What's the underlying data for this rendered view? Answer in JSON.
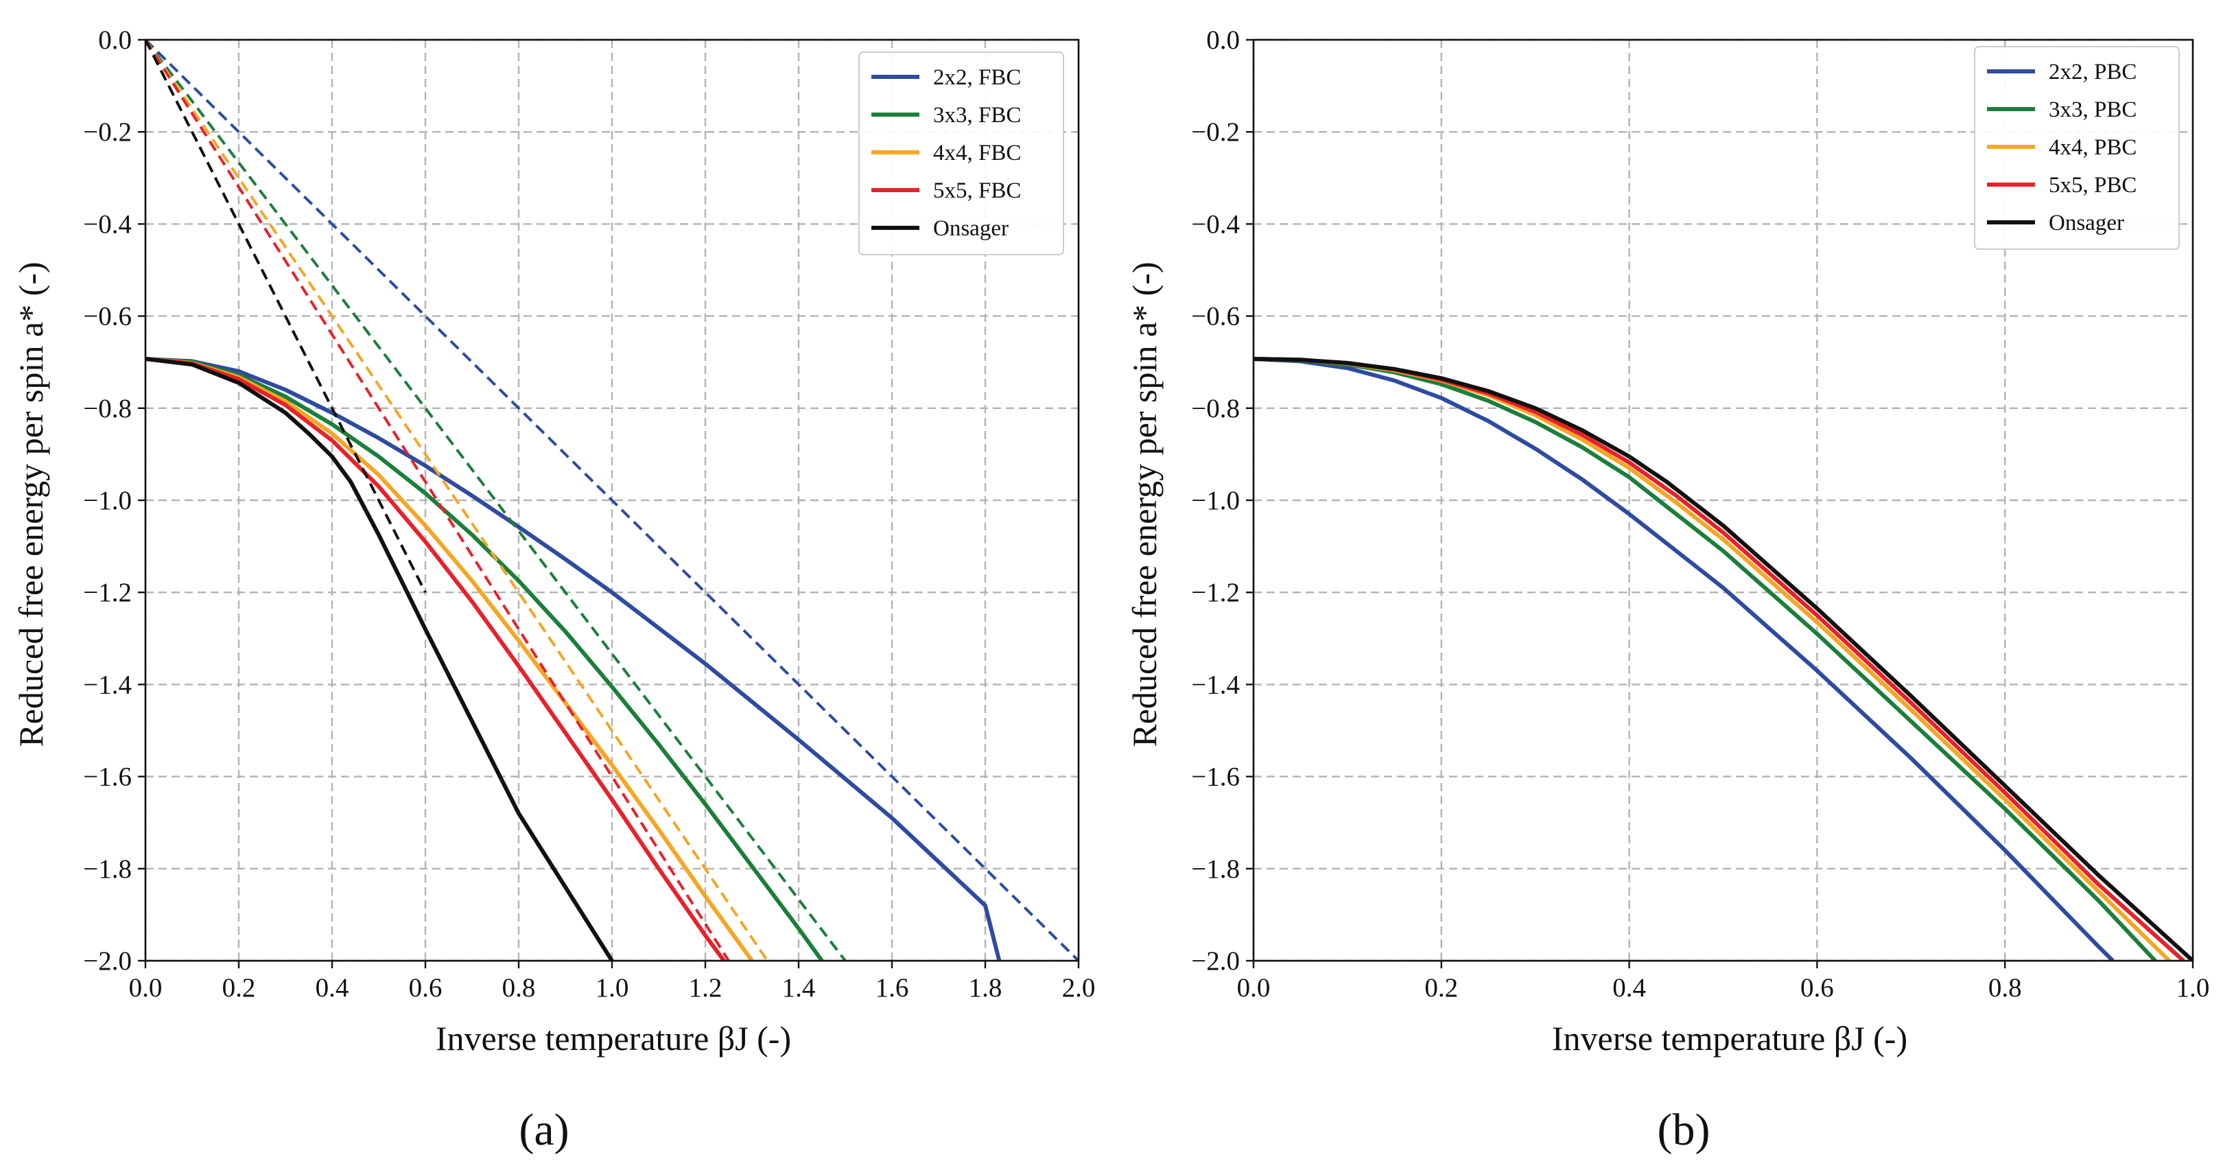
{
  "colors": {
    "blue": "#2F4BA0",
    "green": "#1B7F3B",
    "orange": "#F5A623",
    "red": "#E8212B",
    "black": "#111111"
  },
  "chart_data": [
    {
      "type": "line",
      "panel_label": "(a)",
      "xlabel": "Inverse temperature βJ (-)",
      "ylabel": "Reduced free energy per spin a* (-)",
      "xlim": [
        0,
        2.0
      ],
      "ylim": [
        -2.0,
        0.0
      ],
      "xticks": [
        "0.0",
        "0.2",
        "0.4",
        "0.6",
        "0.8",
        "1.0",
        "1.2",
        "1.4",
        "1.6",
        "1.8",
        "2.0"
      ],
      "yticks": [
        "0.0",
        "−0.2",
        "−0.4",
        "−0.6",
        "−0.8",
        "−1.0",
        "−1.2",
        "−1.4",
        "−1.6",
        "−1.8",
        "−2.0"
      ],
      "grid": true,
      "legend_position": "top-right",
      "legend": [
        {
          "label": "2x2, FBC",
          "color": "#2F4BA0"
        },
        {
          "label": "3x3, FBC",
          "color": "#1B7F3B"
        },
        {
          "label": "4x4, FBC",
          "color": "#F5A623"
        },
        {
          "label": "5x5, FBC",
          "color": "#E8212B"
        },
        {
          "label": "Onsager",
          "color": "#111111"
        }
      ],
      "series": [
        {
          "name": "2x2, FBC",
          "color": "#2F4BA0",
          "style": "solid",
          "x": [
            0,
            0.1,
            0.2,
            0.3,
            0.4,
            0.5,
            0.6,
            0.7,
            0.8,
            0.9,
            1.0,
            1.2,
            1.4,
            1.6,
            1.8,
            1.83
          ],
          "y": [
            -0.693,
            -0.698,
            -0.72,
            -0.76,
            -0.81,
            -0.865,
            -0.925,
            -0.99,
            -1.058,
            -1.128,
            -1.2,
            -1.355,
            -1.52,
            -1.69,
            -1.88,
            -2.0
          ]
        },
        {
          "name": "2x2, FBC asymptote",
          "color": "#2F4BA0",
          "style": "dashed",
          "x": [
            0,
            2.0
          ],
          "y": [
            0,
            -2.0
          ]
        },
        {
          "name": "3x3, FBC",
          "color": "#1B7F3B",
          "style": "solid",
          "x": [
            0,
            0.1,
            0.2,
            0.3,
            0.4,
            0.5,
            0.6,
            0.7,
            0.8,
            0.9,
            1.0,
            1.1,
            1.2,
            1.3,
            1.4,
            1.45
          ],
          "y": [
            -0.693,
            -0.7,
            -0.728,
            -0.775,
            -0.835,
            -0.905,
            -0.985,
            -1.075,
            -1.175,
            -1.285,
            -1.405,
            -1.53,
            -1.66,
            -1.795,
            -1.93,
            -2.0
          ]
        },
        {
          "name": "3x3, FBC asymptote",
          "color": "#1B7F3B",
          "style": "dashed",
          "x": [
            0,
            1.5
          ],
          "y": [
            0,
            -2.0
          ]
        },
        {
          "name": "4x4, FBC",
          "color": "#F5A623",
          "style": "solid",
          "x": [
            0,
            0.1,
            0.2,
            0.3,
            0.4,
            0.5,
            0.6,
            0.7,
            0.8,
            0.9,
            1.0,
            1.1,
            1.2,
            1.3
          ],
          "y": [
            -0.693,
            -0.702,
            -0.733,
            -0.785,
            -0.855,
            -0.945,
            -1.055,
            -1.175,
            -1.305,
            -1.44,
            -1.575,
            -1.715,
            -1.86,
            -2.0
          ]
        },
        {
          "name": "4x4, FBC asymptote",
          "color": "#F5A623",
          "style": "dashed",
          "x": [
            0,
            1.333
          ],
          "y": [
            0,
            -2.0
          ]
        },
        {
          "name": "5x5, FBC",
          "color": "#E8212B",
          "style": "solid",
          "x": [
            0,
            0.1,
            0.2,
            0.3,
            0.4,
            0.5,
            0.6,
            0.7,
            0.8,
            0.9,
            1.0,
            1.1,
            1.2,
            1.24
          ],
          "y": [
            -0.693,
            -0.703,
            -0.737,
            -0.793,
            -0.87,
            -0.97,
            -1.09,
            -1.22,
            -1.36,
            -1.505,
            -1.65,
            -1.8,
            -1.945,
            -2.0
          ]
        },
        {
          "name": "5x5, FBC asymptote",
          "color": "#E8212B",
          "style": "dashed",
          "x": [
            0,
            1.25
          ],
          "y": [
            0,
            -2.0
          ]
        },
        {
          "name": "Onsager",
          "color": "#111111",
          "style": "solid",
          "x": [
            0,
            0.1,
            0.2,
            0.3,
            0.35,
            0.4,
            0.44,
            0.5,
            0.6,
            0.7,
            0.8,
            0.9,
            1.0
          ],
          "y": [
            -0.693,
            -0.705,
            -0.745,
            -0.81,
            -0.855,
            -0.905,
            -0.96,
            -1.075,
            -1.28,
            -1.48,
            -1.68,
            -1.84,
            -2.0
          ]
        },
        {
          "name": "Onsager asymptote",
          "color": "#111111",
          "style": "dashed",
          "x": [
            0,
            0.6
          ],
          "y": [
            0,
            -1.2
          ]
        }
      ]
    },
    {
      "type": "line",
      "panel_label": "(b)",
      "xlabel": "Inverse temperature βJ (-)",
      "ylabel": "Reduced free energy per spin a* (-)",
      "xlim": [
        0,
        1.0
      ],
      "ylim": [
        -2.0,
        0.0
      ],
      "xticks": [
        "0.0",
        "0.2",
        "0.4",
        "0.6",
        "0.8",
        "1.0"
      ],
      "yticks": [
        "0.0",
        "−0.2",
        "−0.4",
        "−0.6",
        "−0.8",
        "−1.0",
        "−1.2",
        "−1.4",
        "−1.6",
        "−1.8",
        "−2.0"
      ],
      "grid": true,
      "legend_position": "top-right",
      "legend": [
        {
          "label": "2x2, PBC",
          "color": "#2F4BA0"
        },
        {
          "label": "3x3, PBC",
          "color": "#1B7F3B"
        },
        {
          "label": "4x4, PBC",
          "color": "#F5A623"
        },
        {
          "label": "5x5, PBC",
          "color": "#E8212B"
        },
        {
          "label": "Onsager",
          "color": "#111111"
        }
      ],
      "series": [
        {
          "name": "2x2, PBC",
          "color": "#2F4BA0",
          "style": "solid",
          "x": [
            0,
            0.05,
            0.1,
            0.15,
            0.2,
            0.25,
            0.3,
            0.35,
            0.4,
            0.45,
            0.5,
            0.6,
            0.7,
            0.8,
            0.9,
            0.915
          ],
          "y": [
            -0.693,
            -0.698,
            -0.713,
            -0.74,
            -0.778,
            -0.828,
            -0.888,
            -0.955,
            -1.03,
            -1.11,
            -1.19,
            -1.37,
            -1.56,
            -1.76,
            -1.97,
            -2.0
          ]
        },
        {
          "name": "3x3, PBC",
          "color": "#1B7F3B",
          "style": "solid",
          "x": [
            0,
            0.05,
            0.1,
            0.15,
            0.2,
            0.25,
            0.3,
            0.35,
            0.4,
            0.45,
            0.5,
            0.6,
            0.7,
            0.8,
            0.9,
            0.96
          ],
          "y": [
            -0.693,
            -0.696,
            -0.705,
            -0.722,
            -0.748,
            -0.784,
            -0.83,
            -0.885,
            -0.95,
            -1.03,
            -1.11,
            -1.29,
            -1.48,
            -1.67,
            -1.87,
            -2.0
          ]
        },
        {
          "name": "4x4, PBC",
          "color": "#F5A623",
          "style": "solid",
          "x": [
            0,
            0.05,
            0.1,
            0.15,
            0.2,
            0.25,
            0.3,
            0.35,
            0.4,
            0.45,
            0.5,
            0.6,
            0.7,
            0.8,
            0.9,
            0.975
          ],
          "y": [
            -0.693,
            -0.695,
            -0.703,
            -0.718,
            -0.74,
            -0.772,
            -0.815,
            -0.868,
            -0.93,
            -1.005,
            -1.085,
            -1.265,
            -1.455,
            -1.65,
            -1.85,
            -2.0
          ]
        },
        {
          "name": "5x5, PBC",
          "color": "#E8212B",
          "style": "solid",
          "x": [
            0,
            0.05,
            0.1,
            0.15,
            0.2,
            0.25,
            0.3,
            0.35,
            0.4,
            0.45,
            0.5,
            0.6,
            0.7,
            0.8,
            0.9,
            0.99
          ],
          "y": [
            -0.693,
            -0.695,
            -0.702,
            -0.716,
            -0.738,
            -0.768,
            -0.808,
            -0.858,
            -0.918,
            -0.99,
            -1.07,
            -1.25,
            -1.44,
            -1.635,
            -1.835,
            -2.0
          ]
        },
        {
          "name": "Onsager",
          "color": "#111111",
          "style": "solid",
          "x": [
            0,
            0.05,
            0.1,
            0.15,
            0.2,
            0.25,
            0.3,
            0.35,
            0.4,
            0.44,
            0.5,
            0.6,
            0.7,
            0.8,
            0.9,
            1.0
          ],
          "y": [
            -0.693,
            -0.695,
            -0.702,
            -0.715,
            -0.735,
            -0.763,
            -0.8,
            -0.848,
            -0.905,
            -0.96,
            -1.055,
            -1.235,
            -1.425,
            -1.62,
            -1.815,
            -2.0
          ]
        }
      ]
    }
  ]
}
